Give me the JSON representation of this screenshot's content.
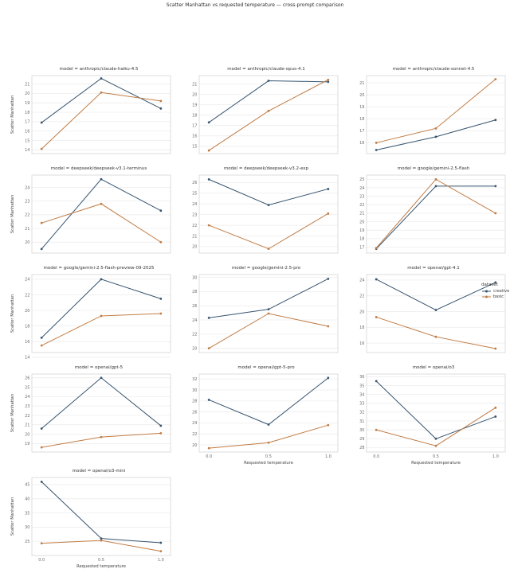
{
  "chart_data": {
    "type": "line",
    "suptitle": "Scatter Manhattan vs requested temperature — cross-prompt comparison",
    "xlabel": "Requested temperature",
    "ylabel": "Scatter Manhattan",
    "x": [
      0.0,
      0.5,
      1.0
    ],
    "x_ticklabels": [
      "0.0",
      "0.5",
      "1.0"
    ],
    "grid": true,
    "legend": {
      "title": "dataset",
      "position": "right-middle",
      "entries": [
        {
          "label": "creative",
          "color": "#36546f"
        },
        {
          "label": "basic",
          "color": "#c17c44"
        }
      ]
    },
    "facets": [
      {
        "title": "model = anthropic/claude-haiku-4.5",
        "yticks": [
          14,
          15,
          16,
          17,
          18,
          19,
          20,
          21
        ],
        "ylim": [
          13.6,
          21.9
        ],
        "series": [
          {
            "name": "creative",
            "values": [
              16.9,
              21.6,
              18.4
            ]
          },
          {
            "name": "basic",
            "values": [
              14.1,
              20.1,
              19.2
            ]
          }
        ],
        "show_ylabel": true,
        "show_xticks": false,
        "show_xlabel": false
      },
      {
        "title": "model = anthropic/claude-opus-4.1",
        "yticks": [
          15,
          16,
          17,
          18,
          19,
          20,
          21
        ],
        "ylim": [
          14.3,
          21.8
        ],
        "series": [
          {
            "name": "creative",
            "values": [
              17.3,
              21.3,
              21.2
            ]
          },
          {
            "name": "basic",
            "values": [
              14.6,
              18.4,
              21.4
            ]
          }
        ],
        "show_ylabel": false,
        "show_xticks": false,
        "show_xlabel": false
      },
      {
        "title": "model = anthropic/claude-sonnet-4.5",
        "yticks": [
          16,
          17,
          18,
          19,
          20,
          21
        ],
        "ylim": [
          15.1,
          21.6
        ],
        "series": [
          {
            "name": "creative",
            "values": [
              15.4,
              16.5,
              17.9
            ]
          },
          {
            "name": "basic",
            "values": [
              16.0,
              17.2,
              21.3
            ]
          }
        ],
        "show_ylabel": false,
        "show_xticks": false,
        "show_xlabel": false
      },
      {
        "title": "model = deepseek/deepseek-v3.1-terminus",
        "yticks": [
          20,
          21,
          22,
          23,
          24
        ],
        "ylim": [
          19.2,
          24.9
        ],
        "series": [
          {
            "name": "creative",
            "values": [
              19.5,
              24.6,
              22.3
            ]
          },
          {
            "name": "basic",
            "values": [
              21.4,
              22.8,
              20.0
            ]
          }
        ],
        "show_ylabel": true,
        "show_xticks": false,
        "show_xlabel": false
      },
      {
        "title": "model = deepseek/deepseek-v3.2-exp",
        "yticks": [
          20,
          21,
          22,
          23,
          24,
          25,
          26
        ],
        "ylim": [
          19.4,
          26.7
        ],
        "series": [
          {
            "name": "creative",
            "values": [
              26.3,
              23.9,
              25.4
            ]
          },
          {
            "name": "basic",
            "values": [
              22.0,
              19.8,
              23.1
            ]
          }
        ],
        "show_ylabel": false,
        "show_xticks": false,
        "show_xlabel": false
      },
      {
        "title": "model = google/gemini-2.5-flash",
        "yticks": [
          17,
          18,
          19,
          20,
          21,
          22,
          23,
          24,
          25
        ],
        "ylim": [
          16.3,
          25.5
        ],
        "series": [
          {
            "name": "creative",
            "values": [
              16.8,
              24.2,
              24.2
            ]
          },
          {
            "name": "basic",
            "values": [
              16.9,
              25.0,
              21.0
            ]
          }
        ],
        "show_ylabel": false,
        "show_xticks": false,
        "show_xlabel": false
      },
      {
        "title": "model = google/gemini-2.5-flash-preview-09-2025",
        "yticks": [
          14,
          16,
          18,
          20,
          22,
          24
        ],
        "ylim": [
          14.6,
          24.6
        ],
        "series": [
          {
            "name": "creative",
            "values": [
              16.5,
              24.0,
              21.5
            ]
          },
          {
            "name": "basic",
            "values": [
              15.5,
              19.3,
              19.6
            ]
          }
        ],
        "show_ylabel": true,
        "show_xticks": false,
        "show_xlabel": false
      },
      {
        "title": "model = google/gemini-2.5-pro",
        "yticks": [
          20,
          22,
          24,
          26,
          28,
          30
        ],
        "ylim": [
          19.4,
          30.4
        ],
        "series": [
          {
            "name": "creative",
            "values": [
              24.3,
              25.5,
              29.8
            ]
          },
          {
            "name": "basic",
            "values": [
              20.0,
              24.9,
              23.1
            ]
          }
        ],
        "show_ylabel": false,
        "show_xticks": false,
        "show_xlabel": false
      },
      {
        "title": "model = openai/gpt-4.1",
        "yticks": [
          16,
          18,
          20,
          22,
          24
        ],
        "ylim": [
          14.8,
          24.7
        ],
        "series": [
          {
            "name": "creative",
            "values": [
              24.1,
              20.2,
              23.7
            ]
          },
          {
            "name": "basic",
            "values": [
              19.3,
              16.8,
              15.3
            ]
          }
        ],
        "show_ylabel": false,
        "show_xticks": false,
        "show_xlabel": false
      },
      {
        "title": "model = openai/gpt-5",
        "yticks": [
          19,
          20,
          21,
          22,
          23,
          24,
          25,
          26
        ],
        "ylim": [
          18.1,
          26.4
        ],
        "series": [
          {
            "name": "creative",
            "values": [
              20.6,
              26.0,
              20.9
            ]
          },
          {
            "name": "basic",
            "values": [
              18.6,
              19.7,
              20.1
            ]
          }
        ],
        "show_ylabel": true,
        "show_xticks": false,
        "show_xlabel": false
      },
      {
        "title": "model = openai/gpt-5-pro",
        "yticks": [
          20,
          22,
          24,
          26,
          28,
          30,
          32
        ],
        "ylim": [
          18.7,
          32.9
        ],
        "series": [
          {
            "name": "creative",
            "values": [
              28.2,
              23.7,
              32.2
            ]
          },
          {
            "name": "basic",
            "values": [
              19.4,
              20.4,
              23.6
            ]
          }
        ],
        "show_ylabel": false,
        "show_xticks": true,
        "show_xlabel": true
      },
      {
        "title": "model = openai/o3",
        "yticks": [
          28,
          29,
          30,
          31,
          32,
          33,
          34,
          35,
          36
        ],
        "ylim": [
          27.5,
          36.3
        ],
        "series": [
          {
            "name": "creative",
            "values": [
              35.5,
              29.0,
              31.5
            ]
          },
          {
            "name": "basic",
            "values": [
              30.0,
              28.2,
              32.5
            ]
          }
        ],
        "show_ylabel": false,
        "show_xticks": true,
        "show_xlabel": true
      },
      {
        "title": "model = openai/o3-mini",
        "yticks": [
          25,
          30,
          35,
          40,
          45
        ],
        "ylim": [
          20.0,
          47.5
        ],
        "series": [
          {
            "name": "creative",
            "values": [
              46.0,
              26.0,
              24.5
            ]
          },
          {
            "name": "basic",
            "values": [
              24.3,
              25.3,
              21.5
            ]
          }
        ],
        "show_ylabel": true,
        "show_xticks": true,
        "show_xlabel": true
      }
    ],
    "colors": {
      "creative": "#36546f",
      "basic": "#c17c44"
    },
    "style": {
      "gridline_color": "#ebebeb",
      "spine_color": "#d6d6d6",
      "tick_label_color": "#6b6b6b"
    }
  }
}
